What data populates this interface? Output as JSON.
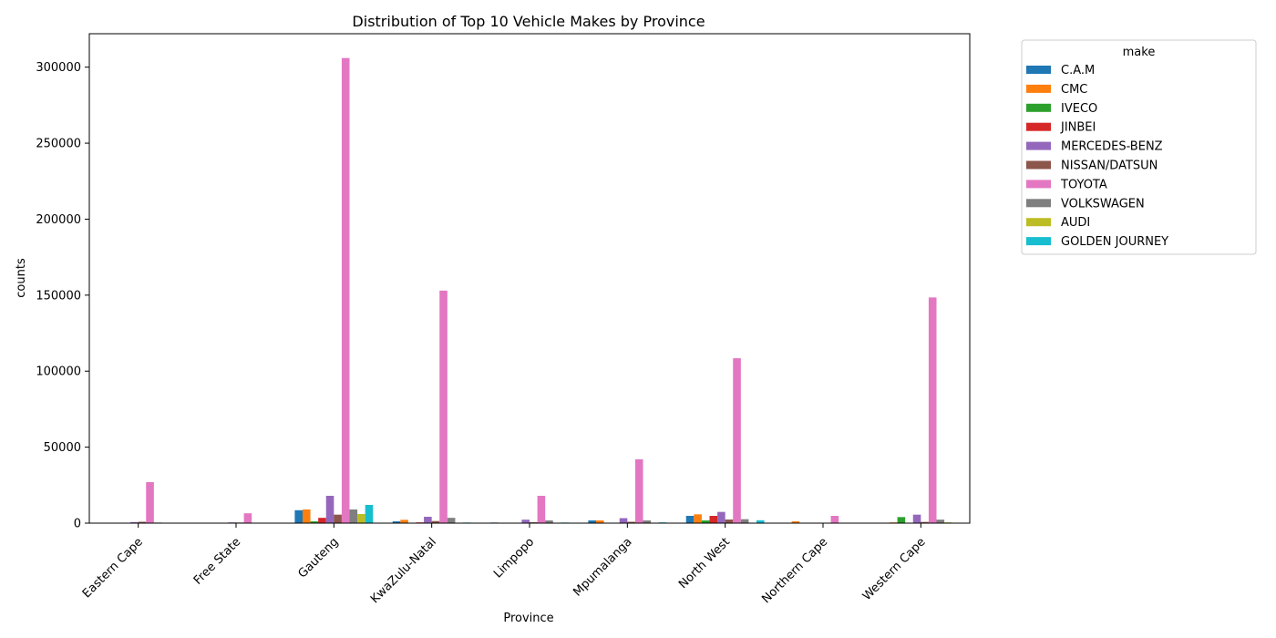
{
  "chart_data": {
    "type": "bar",
    "title": "Distribution of Top 10 Vehicle Makes by Province",
    "xlabel": "Province",
    "ylabel": "counts",
    "ylim": [
      0,
      322000
    ],
    "yticks": [
      0,
      50000,
      100000,
      150000,
      200000,
      250000,
      300000
    ],
    "ytick_labels": [
      "0",
      "50000",
      "100000",
      "150000",
      "200000",
      "250000",
      "300000"
    ],
    "categories": [
      "Eastern Cape",
      "Free State",
      "Gauteng",
      "KwaZulu-Natal",
      "Limpopo",
      "Mpumalanga",
      "North West",
      "Northern Cape",
      "Western Cape"
    ],
    "legend": {
      "title": "make",
      "placement": "outside-right"
    },
    "grid": false,
    "series": [
      {
        "name": "C.A.M",
        "color": "#1f77b4",
        "values": [
          0,
          0,
          8500,
          1200,
          400,
          1800,
          4800,
          0,
          0
        ]
      },
      {
        "name": "CMC",
        "color": "#ff7f0e",
        "values": [
          200,
          0,
          9000,
          2200,
          300,
          1800,
          5800,
          1200,
          500
        ]
      },
      {
        "name": "IVECO",
        "color": "#2ca02c",
        "values": [
          0,
          0,
          1200,
          200,
          0,
          0,
          1800,
          0,
          4000
        ]
      },
      {
        "name": "JINBEI",
        "color": "#d62728",
        "values": [
          300,
          0,
          3500,
          500,
          300,
          300,
          4800,
          0,
          300
        ]
      },
      {
        "name": "MERCEDES-BENZ",
        "color": "#9467bd",
        "values": [
          700,
          500,
          18000,
          4200,
          2300,
          3300,
          7400,
          0,
          5600
        ]
      },
      {
        "name": "NISSAN/DATSUN",
        "color": "#8c564b",
        "values": [
          900,
          400,
          5600,
          1400,
          600,
          900,
          2400,
          0,
          800
        ]
      },
      {
        "name": "TOYOTA",
        "color": "#e377c2",
        "values": [
          27000,
          6500,
          306000,
          153000,
          18000,
          42000,
          108500,
          4800,
          148500
        ]
      },
      {
        "name": "VOLKSWAGEN",
        "color": "#7f7f7f",
        "values": [
          400,
          0,
          9000,
          3500,
          1800,
          1800,
          2600,
          0,
          2300
        ]
      },
      {
        "name": "AUDI",
        "color": "#bcbd22",
        "values": [
          0,
          0,
          6000,
          0,
          0,
          0,
          300,
          0,
          500
        ]
      },
      {
        "name": "GOLDEN JOURNEY",
        "color": "#17becf",
        "values": [
          0,
          0,
          12000,
          400,
          400,
          500,
          1900,
          0,
          0
        ]
      }
    ]
  }
}
